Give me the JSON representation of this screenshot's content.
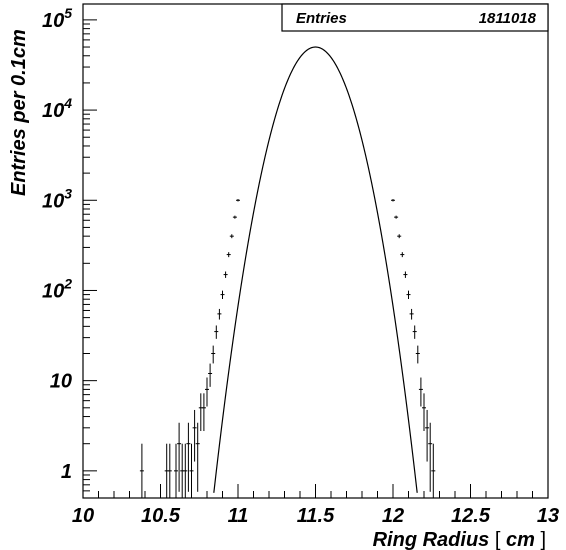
{
  "chart_data": {
    "type": "histogram",
    "xlabel_main": "Ring Radius",
    "xlabel_bracket_open": "[",
    "xlabel_unit": "cm",
    "xlabel_bracket_close": "]",
    "ylabel": "Entries per 0.1cm",
    "xlim": [
      10,
      13
    ],
    "ylim": [
      0.5,
      150000
    ],
    "y_scale": "log",
    "x_ticks": [
      {
        "value": 10,
        "label": "10"
      },
      {
        "value": 10.5,
        "label": "10.5"
      },
      {
        "value": 11,
        "label": "11"
      },
      {
        "value": 11.5,
        "label": "11.5"
      },
      {
        "value": 12,
        "label": "12"
      },
      {
        "value": 12.5,
        "label": "12.5"
      },
      {
        "value": 13,
        "label": "13"
      }
    ],
    "y_ticks": [
      {
        "value": 1,
        "label": "1",
        "exp": ""
      },
      {
        "value": 10,
        "label": "10",
        "exp": ""
      },
      {
        "value": 100,
        "label": "10",
        "exp": "2"
      },
      {
        "value": 1000,
        "label": "10",
        "exp": "3"
      },
      {
        "value": 10000,
        "label": "10",
        "exp": "4"
      },
      {
        "value": 100000,
        "label": "10",
        "exp": "5"
      }
    ],
    "stats_box": {
      "name": "Entries",
      "value": "1811018"
    },
    "fit": {
      "type": "gaussian",
      "peak": 50000,
      "mean": 11.5,
      "sigma": 0.1375
    },
    "data_points": [
      {
        "x": 10.38,
        "y": 1
      },
      {
        "x": 10.54,
        "y": 1
      },
      {
        "x": 10.56,
        "y": 1
      },
      {
        "x": 10.6,
        "y": 1
      },
      {
        "x": 10.62,
        "y": 2
      },
      {
        "x": 10.64,
        "y": 1
      },
      {
        "x": 10.66,
        "y": 1
      },
      {
        "x": 10.68,
        "y": 2
      },
      {
        "x": 10.7,
        "y": 1
      },
      {
        "x": 10.72,
        "y": 3
      },
      {
        "x": 10.74,
        "y": 2
      },
      {
        "x": 10.76,
        "y": 5
      },
      {
        "x": 10.78,
        "y": 5
      },
      {
        "x": 10.8,
        "y": 8
      },
      {
        "x": 10.82,
        "y": 12
      },
      {
        "x": 10.84,
        "y": 20
      },
      {
        "x": 10.86,
        "y": 35
      },
      {
        "x": 10.88,
        "y": 55
      },
      {
        "x": 10.9,
        "y": 90
      },
      {
        "x": 10.92,
        "y": 150
      },
      {
        "x": 10.94,
        "y": 250
      },
      {
        "x": 10.96,
        "y": 400
      },
      {
        "x": 10.98,
        "y": 650
      },
      {
        "x": 11.0,
        "y": 1000
      },
      {
        "x": 12.0,
        "y": 1000
      },
      {
        "x": 12.02,
        "y": 650
      },
      {
        "x": 12.04,
        "y": 400
      },
      {
        "x": 12.06,
        "y": 250
      },
      {
        "x": 12.08,
        "y": 150
      },
      {
        "x": 12.1,
        "y": 90
      },
      {
        "x": 12.12,
        "y": 55
      },
      {
        "x": 12.14,
        "y": 35
      },
      {
        "x": 12.16,
        "y": 20
      },
      {
        "x": 12.18,
        "y": 8
      },
      {
        "x": 12.2,
        "y": 5
      },
      {
        "x": 12.22,
        "y": 3
      },
      {
        "x": 12.24,
        "y": 2
      },
      {
        "x": 12.26,
        "y": 1
      }
    ]
  }
}
